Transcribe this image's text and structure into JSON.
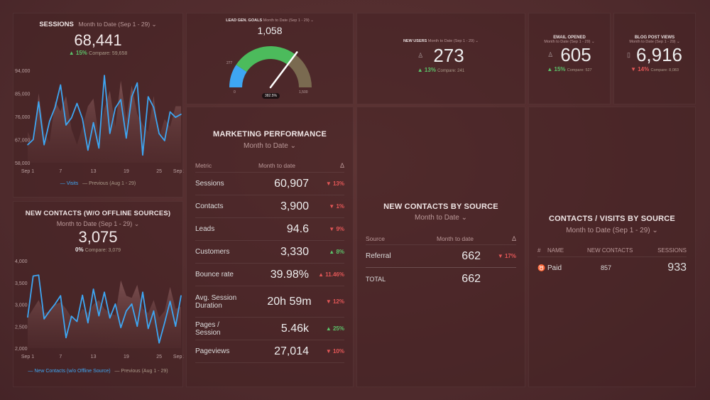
{
  "colors": {
    "accent": "#3ea6f2",
    "up": "#5cc36a",
    "down": "#e45757",
    "gauge_blue": "#3ea6f2",
    "gauge_green": "#4cbb5c",
    "gauge_rest": "#7a6a50"
  },
  "sessions": {
    "title": "SESSIONS",
    "period": "Month to Date (Sep 1 - 29)",
    "value": "68,441",
    "change": "15%",
    "direction": "up",
    "compare": "Compare: 59,658"
  },
  "new_contacts": {
    "title": "NEW CONTACTS (W/O OFFLINE SOURCES)",
    "period": "Month to Date (Sep 1 - 29)",
    "value": "3,075",
    "change": "0%",
    "compare": "Compare: 3,079"
  },
  "lead_gen": {
    "title": "LEAD GEN. GOALS",
    "period": "Month to Date (Sep 1 - 29)",
    "value": "1,058",
    "min_label": "0",
    "max_label": "1,500",
    "goal_label": "277",
    "percent_label": "382.5%",
    "value_num": 1058,
    "goal_num": 277,
    "max_num": 1500
  },
  "new_users": {
    "title": "NEW USERS",
    "period": "Month to Date (Sep 1 - 29)",
    "value": "273",
    "change": "13%",
    "direction": "up",
    "compare": "Compare: 241",
    "icon": "user-icon"
  },
  "email_opened": {
    "title": "EMAIL OPENED",
    "period": "Month to Date (Sep 1 - 29)",
    "value": "605",
    "change": "15%",
    "direction": "up",
    "compare": "Compare: 527",
    "icon": "user-icon"
  },
  "blog_views": {
    "title": "BLOG POST VIEWS",
    "period": "Month to Date (Sep 1 - 29)",
    "value": "6,916",
    "change": "14%",
    "direction": "down",
    "compare": "Compare: 8,083",
    "icon": "document-icon"
  },
  "marketing": {
    "title": "MARKETING PERFORMANCE",
    "period": "Month to Date",
    "headers": [
      "Metric",
      "Month to date",
      "Δ"
    ],
    "rows": [
      {
        "metric": "Sessions",
        "value": "60,907",
        "change": "13%",
        "dir": "down"
      },
      {
        "metric": "Contacts",
        "value": "3,900",
        "change": "1%",
        "dir": "down"
      },
      {
        "metric": "Leads",
        "value": "94.6",
        "change": "9%",
        "dir": "down"
      },
      {
        "metric": "Customers",
        "value": "3,330",
        "change": "8%",
        "dir": "up"
      },
      {
        "metric": "Bounce rate",
        "value": "39.98%",
        "change": "11.46%",
        "dir": "up-bad"
      },
      {
        "metric": "Avg. Session Duration",
        "value": "20h 59m",
        "change": "12%",
        "dir": "down"
      },
      {
        "metric": "Pages / Session",
        "value": "5.46k",
        "change": "25%",
        "dir": "up"
      },
      {
        "metric": "Pageviews",
        "value": "27,014",
        "change": "10%",
        "dir": "down"
      }
    ]
  },
  "contacts_by_source": {
    "title": "NEW CONTACTS BY SOURCE",
    "period": "Month to Date",
    "headers": [
      "Source",
      "Month to date",
      "Δ"
    ],
    "rows": [
      {
        "source": "Referral",
        "value": "662",
        "change": "17%",
        "dir": "down"
      }
    ],
    "total_label": "TOTAL",
    "total_value": "662"
  },
  "visits_by_source": {
    "title": "CONTACTS / VISITS BY SOURCE",
    "period": "Month to Date (Sep 1 - 29)",
    "headers": [
      "#",
      "NAME",
      "NEW CONTACTS",
      "SESSIONS"
    ],
    "rows": [
      {
        "icon": "medal-icon",
        "name": "Paid",
        "contacts": "857",
        "sessions": "933"
      }
    ]
  },
  "chart_data": [
    {
      "type": "line",
      "ylim": [
        58000,
        94000
      ],
      "yticks": [
        "94,000",
        "85,000",
        "76,000",
        "67,000",
        "58,000"
      ],
      "ytick_values": [
        94000,
        85000,
        76000,
        67000,
        58000
      ],
      "xticks": [
        "Sep 1",
        "7",
        "13",
        "19",
        "25",
        "Sep 29"
      ],
      "xtick_days": [
        1,
        7,
        13,
        19,
        25,
        29
      ],
      "series": [
        {
          "name": "Visits",
          "values": [
            65000,
            67000,
            81700,
            65000,
            74200,
            79600,
            88300,
            72700,
            75500,
            81100,
            75100,
            62900,
            73600,
            63700,
            92000,
            69400,
            79300,
            82600,
            67600,
            83700,
            89100,
            61000,
            83700,
            79600,
            69300,
            66600,
            77800,
            75700,
            76900
          ]
        },
        {
          "name": "Previous (Aug 1 - 29)",
          "values": [
            70000,
            66000,
            85000,
            70000,
            66000,
            82000,
            78000,
            84000,
            71000,
            65000,
            72000,
            80000,
            83000,
            68000,
            79000,
            86000,
            72000,
            90000,
            75000,
            88000,
            77000,
            73000,
            70000,
            84000,
            68000,
            75000,
            72000,
            80000,
            80000
          ]
        }
      ]
    },
    {
      "type": "line",
      "ylim": [
        2000,
        4000
      ],
      "yticks": [
        "4,000",
        "3,500",
        "3,000",
        "2,500",
        "2,000"
      ],
      "ytick_values": [
        4000,
        3500,
        3000,
        2500,
        2000
      ],
      "xticks": [
        "Sep 1",
        "7",
        "13",
        "19",
        "25",
        "Sep 29"
      ],
      "xtick_days": [
        1,
        7,
        13,
        19,
        25,
        29
      ],
      "series": [
        {
          "name": "New Contacts (w/o Offline Source)",
          "values": [
            2710,
            3650,
            3670,
            2670,
            2850,
            3010,
            3200,
            2240,
            2730,
            2610,
            3210,
            2580,
            3350,
            2740,
            3280,
            2690,
            3010,
            2470,
            2850,
            3010,
            2500,
            3280,
            2450,
            2850,
            2120,
            2580,
            3070,
            2500,
            3200
          ]
        },
        {
          "name": "Previous (Aug 1 - 29)",
          "values": [
            2700,
            2900,
            3100,
            2800,
            2850,
            3000,
            3050,
            2900,
            2700,
            2650,
            2900,
            2800,
            3000,
            3100,
            2900,
            2800,
            2750,
            3550,
            3200,
            3150,
            3450,
            2900,
            2800,
            3100,
            2700,
            2850,
            3400,
            2900,
            2950
          ]
        }
      ]
    }
  ]
}
